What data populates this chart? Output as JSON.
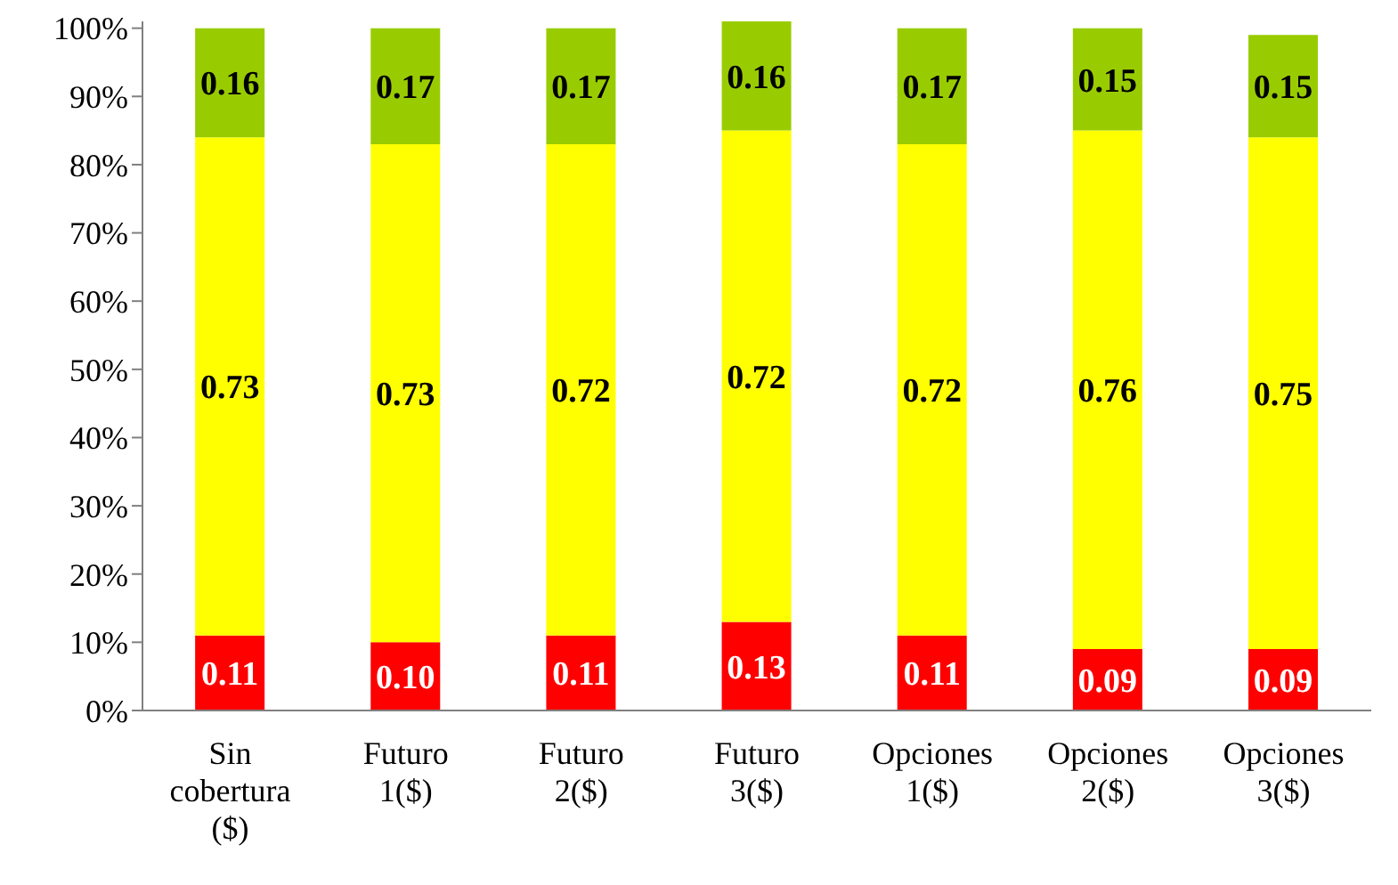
{
  "chart_data": {
    "type": "bar",
    "stacked": true,
    "categories": [
      "Sin cobertura ($)",
      "Futuro 1($)",
      "Futuro 2($)",
      "Futuro 3($)",
      "Opciones 1($)",
      "Opciones 2($)",
      "Opciones 3($)"
    ],
    "series": [
      {
        "color": "#ff0000",
        "values": [
          0.11,
          0.1,
          0.11,
          0.13,
          0.11,
          0.09,
          0.09
        ],
        "value_labels": [
          "0.11",
          "0.10",
          "0.11",
          "0.13",
          "0.11",
          "0.09",
          "0.09"
        ]
      },
      {
        "color": "#ffff00",
        "values": [
          0.73,
          0.73,
          0.72,
          0.72,
          0.72,
          0.76,
          0.75
        ],
        "value_labels": [
          "0.73",
          "0.73",
          "0.72",
          "0.72",
          "0.72",
          "0.76",
          "0.75"
        ]
      },
      {
        "color": "#99cc00",
        "values": [
          0.16,
          0.17,
          0.17,
          0.16,
          0.17,
          0.15,
          0.15
        ],
        "value_labels": [
          "0.16",
          "0.17",
          "0.17",
          "0.16",
          "0.17",
          "0.15",
          "0.15"
        ]
      }
    ],
    "ylim": [
      0,
      1.01
    ],
    "yticks": [
      {
        "value": 0,
        "label": "0%"
      },
      {
        "value": 0.1,
        "label": "10%"
      },
      {
        "value": 0.2,
        "label": "20%"
      },
      {
        "value": 0.3,
        "label": "30%"
      },
      {
        "value": 0.4,
        "label": "40%"
      },
      {
        "value": 0.5,
        "label": "50%"
      },
      {
        "value": 0.6,
        "label": "60%"
      },
      {
        "value": 0.7,
        "label": "70%"
      },
      {
        "value": 0.8,
        "label": "80%"
      },
      {
        "value": 0.9,
        "label": "90%"
      },
      {
        "value": 1,
        "label": "100%"
      }
    ],
    "grid": false,
    "legend": false
  }
}
